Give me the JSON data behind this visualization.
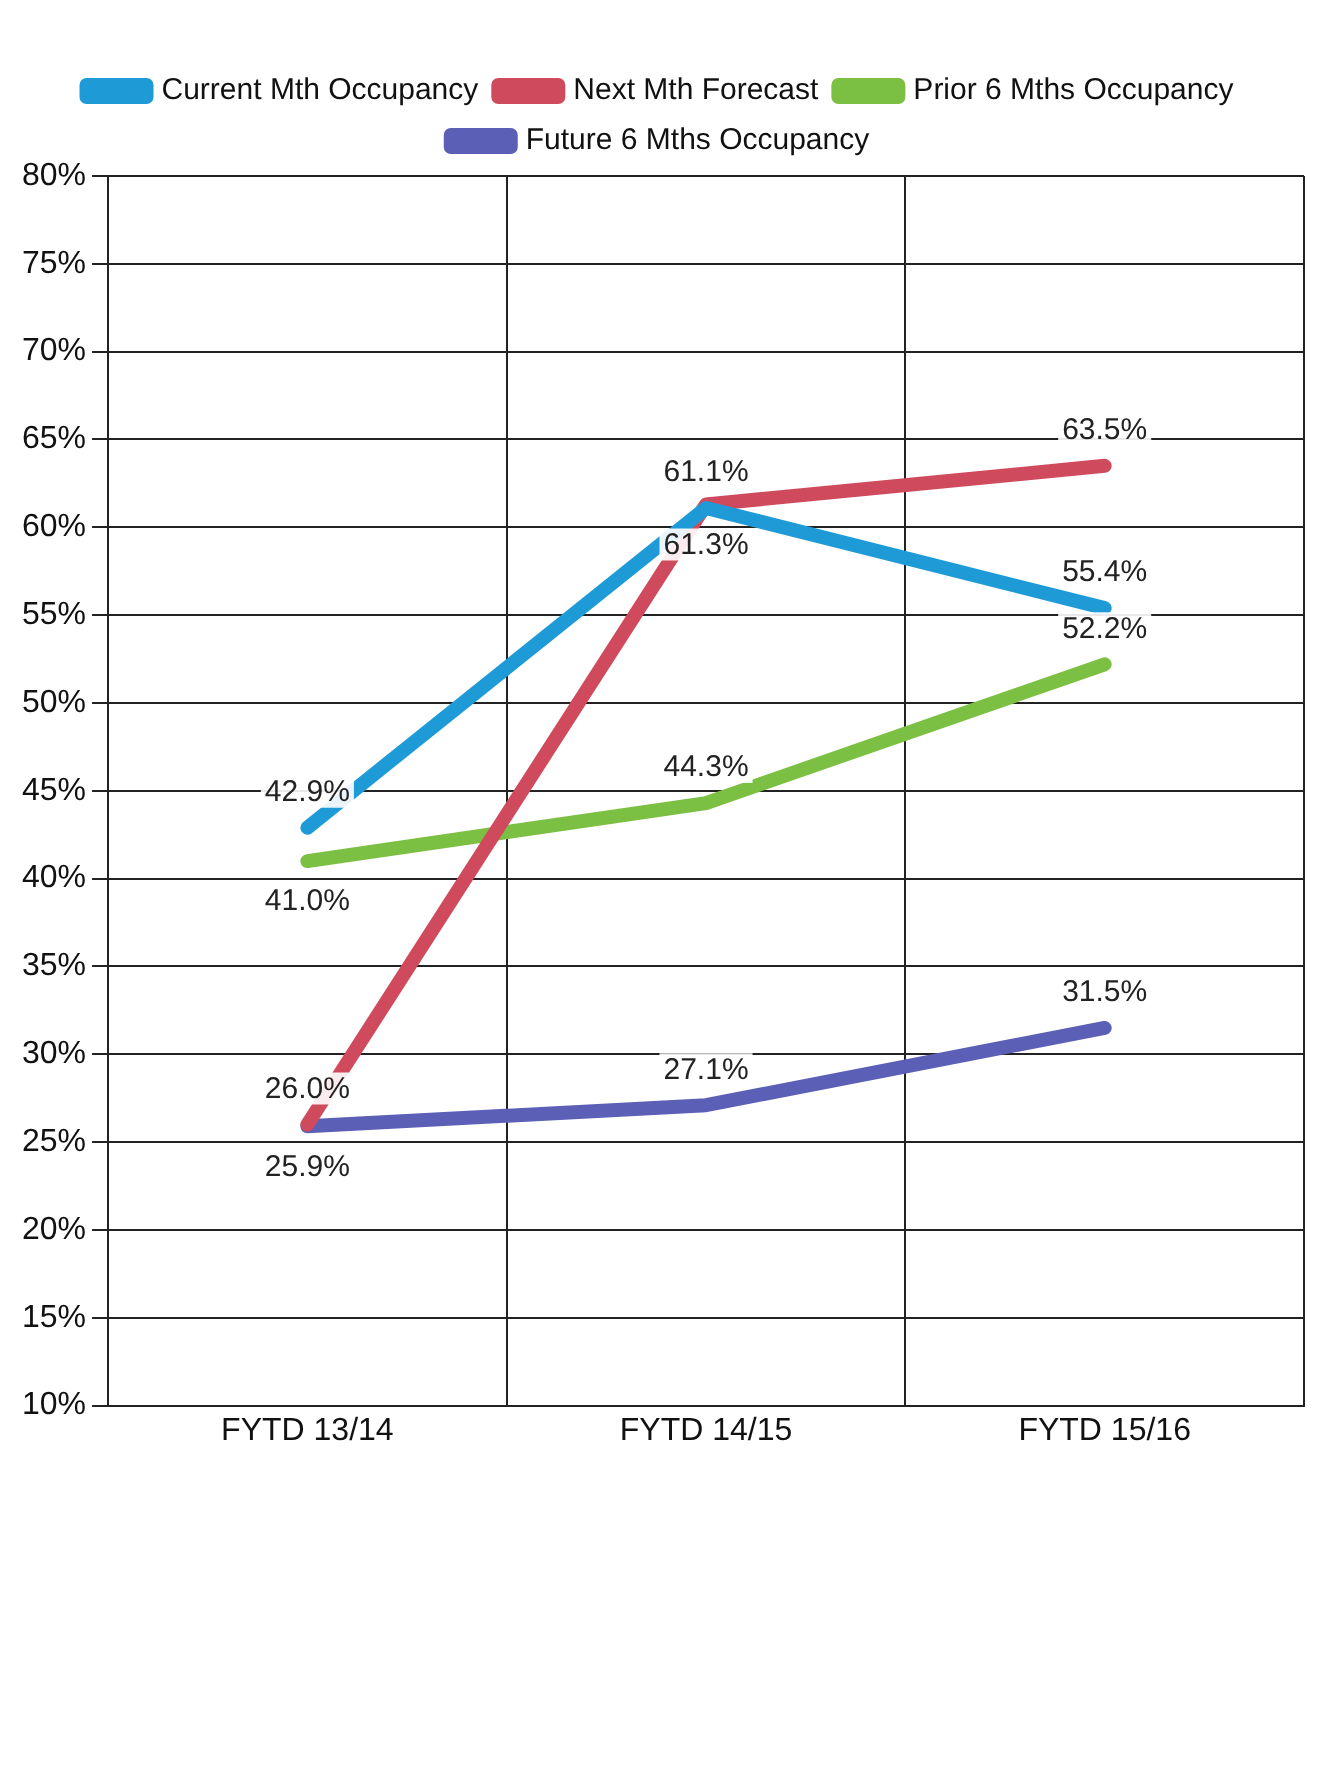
{
  "chart_data": {
    "type": "line",
    "categories": [
      "FYTD 13/14",
      "FYTD 14/15",
      "FYTD 15/16"
    ],
    "series": [
      {
        "name": "Current Mth Occupancy",
        "color": "#1e9bd7",
        "values": [
          42.9,
          61.1,
          55.4
        ],
        "value_labels": [
          "42.9%",
          "61.1%",
          "55.4%"
        ]
      },
      {
        "name": "Next Mth Forecast",
        "color": "#cf4a5c",
        "values": [
          26.0,
          61.3,
          63.5
        ],
        "value_labels": [
          "26.0%",
          "61.3%",
          "63.5%"
        ]
      },
      {
        "name": "Prior 6 Mths Occupancy",
        "color": "#7cc043",
        "values": [
          41.0,
          44.3,
          52.2
        ],
        "value_labels": [
          "41.0%",
          "44.3%",
          "52.2%"
        ]
      },
      {
        "name": "Future 6 Mths Occupancy",
        "color": "#5b5fb5",
        "values": [
          25.9,
          27.1,
          31.5
        ],
        "value_labels": [
          "25.9%",
          "27.1%",
          "31.5%"
        ]
      }
    ],
    "ylim": [
      10,
      80
    ],
    "yticks": [
      {
        "value": 10,
        "label": "10%"
      },
      {
        "value": 15,
        "label": "15%"
      },
      {
        "value": 20,
        "label": "20%"
      },
      {
        "value": 25,
        "label": "25%"
      },
      {
        "value": 30,
        "label": "30%"
      },
      {
        "value": 35,
        "label": "35%"
      },
      {
        "value": 40,
        "label": "40%"
      },
      {
        "value": 45,
        "label": "45%"
      },
      {
        "value": 50,
        "label": "50%"
      },
      {
        "value": 55,
        "label": "55%"
      },
      {
        "value": 60,
        "label": "60%"
      },
      {
        "value": 65,
        "label": "65%"
      },
      {
        "value": 70,
        "label": "70%"
      },
      {
        "value": 75,
        "label": "75%"
      },
      {
        "value": 80,
        "label": "80%"
      }
    ],
    "grid": true,
    "legend": "top",
    "marker": "none",
    "line_style": "solid"
  }
}
